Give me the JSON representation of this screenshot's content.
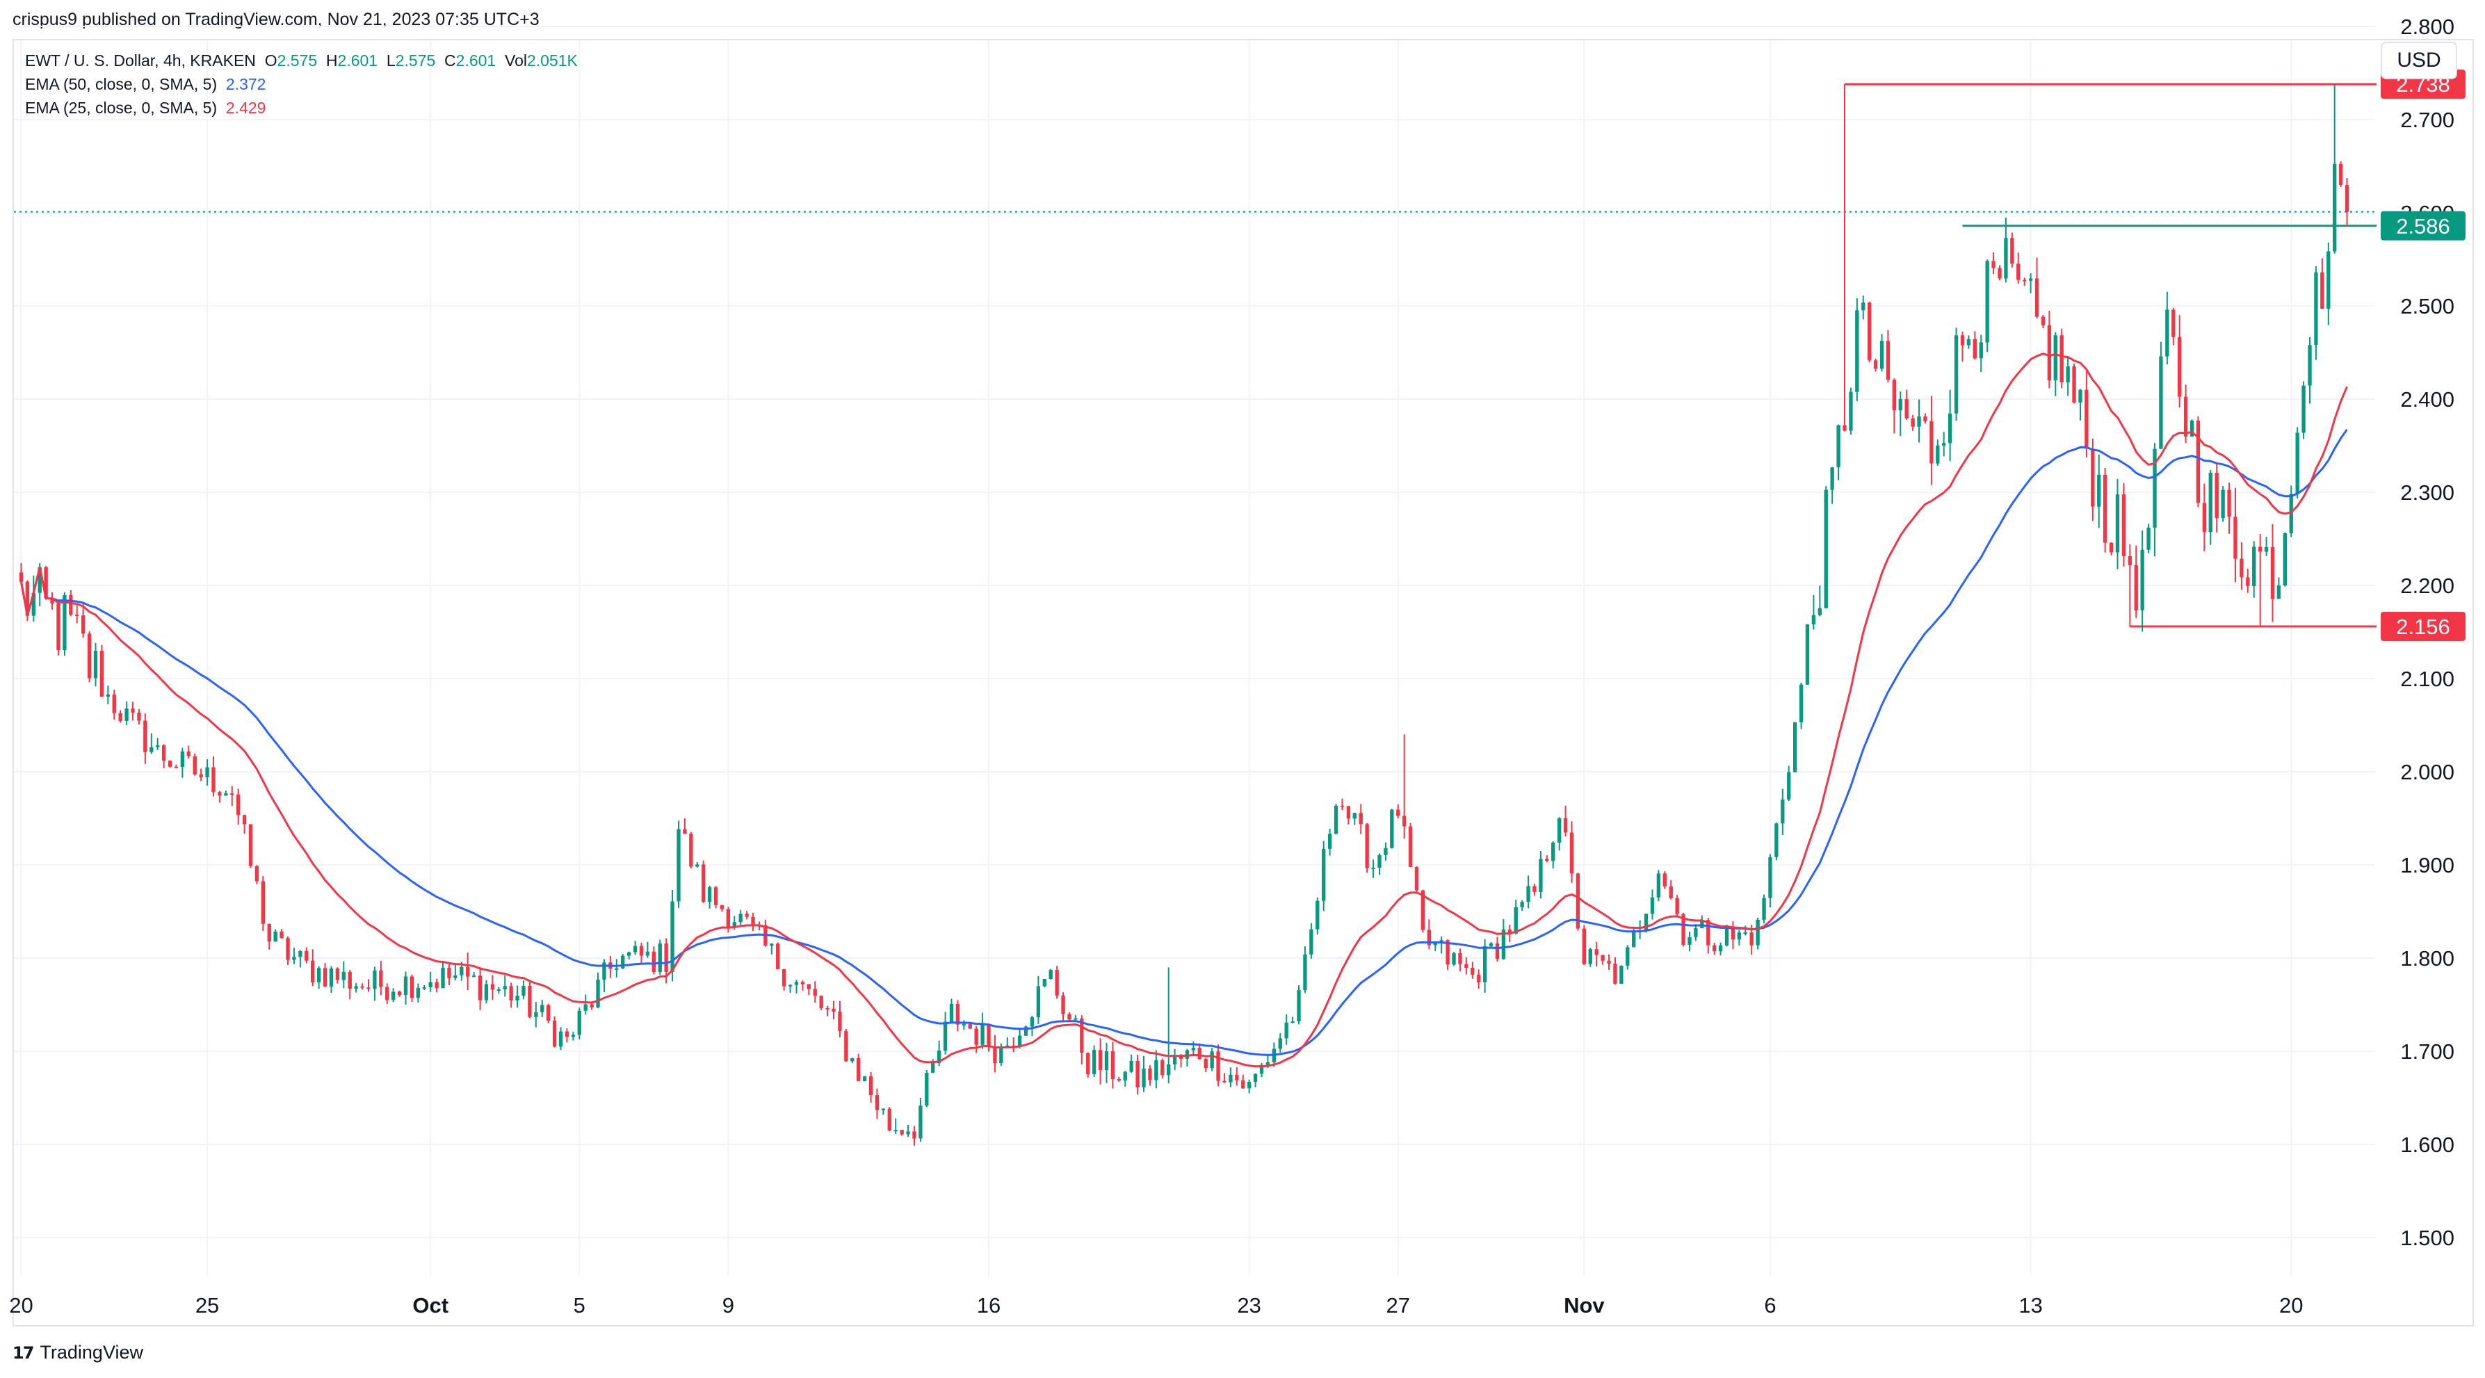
{
  "header": {
    "published_line": "crispus9 published on TradingView.com, Nov 21, 2023 07:35 UTC+3"
  },
  "legend": {
    "symbol": "EWT / U. S. Dollar, 4h, KRAKEN",
    "o_label": "O",
    "o_value": "2.575",
    "h_label": "H",
    "h_value": "2.601",
    "l_label": "L",
    "l_value": "2.575",
    "c_label": "C",
    "c_value": "2.601",
    "vol_label": "Vol",
    "vol_value": "2.051K",
    "ema50_label": "EMA (50, close, 0, SMA, 5)",
    "ema50_value": "2.372",
    "ema25_label": "EMA (25, close, 0, SMA, 5)",
    "ema25_value": "2.429"
  },
  "currency_button": "USD",
  "brand": {
    "name": "TradingView",
    "logo_glyph": "17"
  },
  "colors": {
    "up": "#089981",
    "down": "#f23645",
    "ema50": "#2962ff",
    "ema25": "#f23645",
    "resistance": "#f23645",
    "support_green": "#089981",
    "grid": "#f0f3fa",
    "axis_text": "#131722"
  },
  "chart_data": {
    "type": "candlestick",
    "ylim": [
      1.45,
      2.85
    ],
    "y_ticks": [
      1.5,
      1.6,
      1.7,
      1.8,
      1.9,
      2.0,
      2.1,
      2.2,
      2.3,
      2.4,
      2.5,
      2.6,
      2.7,
      2.8
    ],
    "y_tick_labels": [
      "1.500",
      "1.600",
      "1.700",
      "1.800",
      "1.900",
      "2.000",
      "2.100",
      "2.200",
      "2.300",
      "2.400",
      "2.500",
      "2.600",
      "2.700",
      "2.800"
    ],
    "x_tick_labels": [
      "20",
      "25",
      "Oct",
      "5",
      "9",
      "16",
      "23",
      "27",
      "Nov",
      "6",
      "13",
      "20"
    ],
    "x_tick_index": [
      0,
      30,
      66,
      90,
      114,
      156,
      198,
      222,
      252,
      282,
      324,
      366
    ],
    "bar_count": 376,
    "x_tick_bold": [
      false,
      false,
      true,
      false,
      false,
      false,
      false,
      false,
      true,
      false,
      false,
      false
    ],
    "anchors": [
      [
        0,
        2.19
      ],
      [
        8,
        2.15
      ],
      [
        14,
        2.08
      ],
      [
        22,
        2.02
      ],
      [
        34,
        1.98
      ],
      [
        40,
        1.82
      ],
      [
        46,
        1.79
      ],
      [
        56,
        1.77
      ],
      [
        70,
        1.78
      ],
      [
        80,
        1.76
      ],
      [
        88,
        1.71
      ],
      [
        96,
        1.8
      ],
      [
        104,
        1.8
      ],
      [
        106,
        1.94
      ],
      [
        110,
        1.87
      ],
      [
        116,
        1.84
      ],
      [
        124,
        1.78
      ],
      [
        130,
        1.74
      ],
      [
        134,
        1.69
      ],
      [
        140,
        1.62
      ],
      [
        144,
        1.62
      ],
      [
        150,
        1.74
      ],
      [
        158,
        1.7
      ],
      [
        166,
        1.78
      ],
      [
        172,
        1.69
      ],
      [
        180,
        1.67
      ],
      [
        190,
        1.7
      ],
      [
        198,
        1.66
      ],
      [
        206,
        1.75
      ],
      [
        212,
        1.98
      ],
      [
        218,
        1.9
      ],
      [
        222,
        1.96
      ],
      [
        226,
        1.82
      ],
      [
        234,
        1.78
      ],
      [
        244,
        1.87
      ],
      [
        248,
        1.96
      ],
      [
        252,
        1.8
      ],
      [
        258,
        1.78
      ],
      [
        264,
        1.9
      ],
      [
        268,
        1.83
      ],
      [
        276,
        1.82
      ],
      [
        280,
        1.83
      ],
      [
        286,
        2.05
      ],
      [
        292,
        2.3
      ],
      [
        296,
        2.48
      ],
      [
        302,
        2.39
      ],
      [
        308,
        2.35
      ],
      [
        314,
        2.48
      ],
      [
        320,
        2.53
      ],
      [
        330,
        2.42
      ],
      [
        336,
        2.28
      ],
      [
        342,
        2.2
      ],
      [
        346,
        2.47
      ],
      [
        352,
        2.3
      ],
      [
        358,
        2.24
      ],
      [
        364,
        2.22
      ],
      [
        368,
        2.45
      ],
      [
        372,
        2.56
      ],
      [
        374,
        2.67
      ],
      [
        375,
        2.6
      ]
    ],
    "spikes": [
      [
        294,
        2.738
      ],
      [
        373,
        2.738
      ],
      [
        185,
        1.79
      ],
      [
        223,
        2.04
      ],
      [
        340,
        2.156
      ],
      [
        361,
        2.156
      ]
    ],
    "ema25_value": 2.429,
    "ema50_value": 2.372,
    "last_price_line": 2.601,
    "price_labels": [
      {
        "value": 2.738,
        "label": "2.738",
        "color": "#f23645"
      },
      {
        "value": 2.586,
        "label": "2.586",
        "color": "#089981"
      },
      {
        "value": 2.156,
        "label": "2.156",
        "color": "#f23645"
      }
    ],
    "levels": [
      {
        "value": 2.738,
        "from_index": 294,
        "color": "#f23645"
      },
      {
        "value": 2.586,
        "from_index": 313,
        "color": "#089981"
      },
      {
        "value": 2.156,
        "from_index": 340,
        "color": "#f23645"
      }
    ]
  }
}
